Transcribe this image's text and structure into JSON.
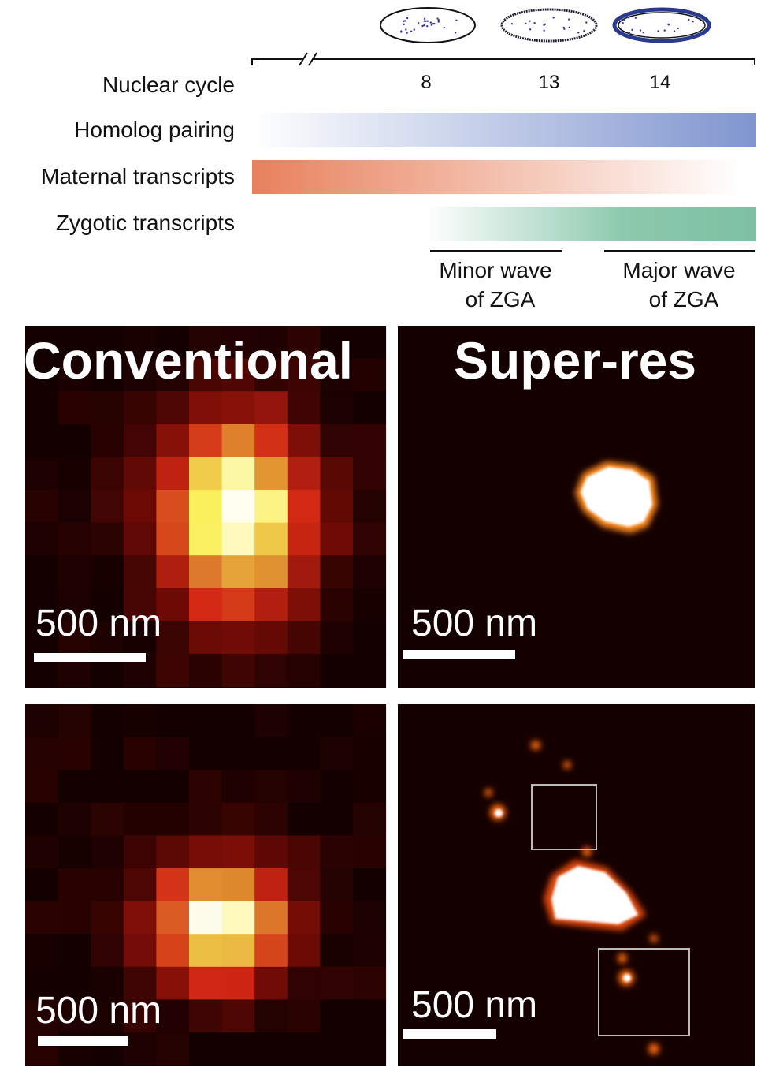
{
  "timeline": {
    "row_labels": [
      "Nuclear cycle",
      "Homolog pairing",
      "Maternal transcripts",
      "Zygotic transcripts"
    ],
    "cycles": [
      "8",
      "13",
      "14"
    ],
    "waves": [
      {
        "lines": [
          "Minor wave",
          "of ZGA"
        ]
      },
      {
        "lines": [
          "Major wave",
          "of ZGA"
        ]
      }
    ]
  },
  "panels": [
    {
      "title": "Conventional",
      "scale_bar": "500 nm"
    },
    {
      "title": "Super-res",
      "scale_bar": "500 nm"
    },
    {
      "scale_bar": "500 nm"
    },
    {
      "scale_bar": "500 nm"
    }
  ]
}
